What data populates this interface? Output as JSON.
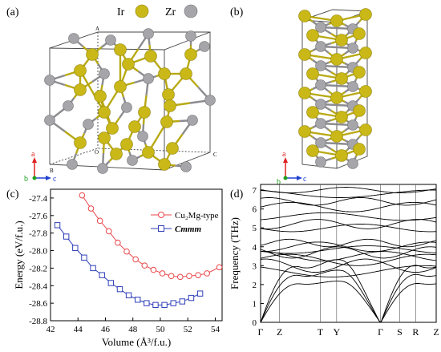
{
  "figure": {
    "panels": {
      "a": {
        "label": "(a)",
        "legend": [
          {
            "symbol": "Ir",
            "color": "#c9b817"
          },
          {
            "symbol": "Zr",
            "color": "#a6a6aa"
          }
        ],
        "cell_corner_labels": [
          "A",
          "B",
          "O",
          "C"
        ],
        "axes_triad": [
          "a",
          "b",
          "c"
        ]
      },
      "b": {
        "label": "(b)",
        "axes_triad": [
          "a",
          "b",
          "c"
        ]
      },
      "c": {
        "label": "(c)",
        "ylabel": "Energy (eV/f.u.)",
        "xlabel": "Volume (Å³/f.u.)",
        "legend": [
          "Cu₂Mg-type",
          "Cmmm"
        ]
      },
      "d": {
        "label": "(d)",
        "ylabel": "Frequency (THz)"
      }
    }
  },
  "chart_data": [
    {
      "type": "line",
      "panel": "c",
      "xlabel": "Volume (Å³/f.u.)",
      "ylabel": "Energy (eV/f.u.)",
      "xlim": [
        42,
        54.5
      ],
      "ylim": [
        -28.8,
        -27.3
      ],
      "xticks": [
        42,
        44,
        46,
        48,
        50,
        52,
        54
      ],
      "yticks": [
        -27.4,
        -27.6,
        -27.8,
        -28.0,
        -28.2,
        -28.4,
        -28.6,
        -28.8
      ],
      "series": [
        {
          "name": "Cu₂Mg-type",
          "color": "#e8474a",
          "marker": "circle",
          "x": [
            44.3,
            44.95,
            45.6,
            46.25,
            46.9,
            47.55,
            48.2,
            48.85,
            49.5,
            50.15,
            50.8,
            51.45,
            52.1,
            52.75,
            53.4,
            54.3
          ],
          "y": [
            -27.37,
            -27.52,
            -27.66,
            -27.78,
            -27.91,
            -28.01,
            -28.1,
            -28.17,
            -28.22,
            -28.26,
            -28.29,
            -28.3,
            -28.29,
            -28.28,
            -28.26,
            -28.19
          ]
        },
        {
          "name": "Cmmm",
          "color": "#2f3fb8",
          "marker": "square",
          "x": [
            42.5,
            43.15,
            43.8,
            44.45,
            45.1,
            45.75,
            46.4,
            47.05,
            47.7,
            48.35,
            49.0,
            49.65,
            50.3,
            50.95,
            51.6,
            52.25,
            52.9
          ],
          "y": [
            -27.71,
            -27.84,
            -27.97,
            -28.08,
            -28.2,
            -28.28,
            -28.37,
            -28.44,
            -28.51,
            -28.56,
            -28.6,
            -28.62,
            -28.62,
            -28.6,
            -28.58,
            -28.54,
            -28.49
          ]
        }
      ]
    },
    {
      "type": "line",
      "panel": "d",
      "ylabel": "Frequency (THz)",
      "ylim": [
        0,
        7.3
      ],
      "yticks": [
        0,
        1,
        2,
        3,
        4,
        5,
        6,
        7
      ],
      "kpath_labels": [
        "Γ",
        "Z",
        "T",
        "Y",
        "Γ",
        "S",
        "R",
        "Z"
      ],
      "kpath_positions": [
        0,
        0.108,
        0.34,
        0.433,
        0.683,
        0.792,
        0.883,
        1.0
      ]
    }
  ]
}
